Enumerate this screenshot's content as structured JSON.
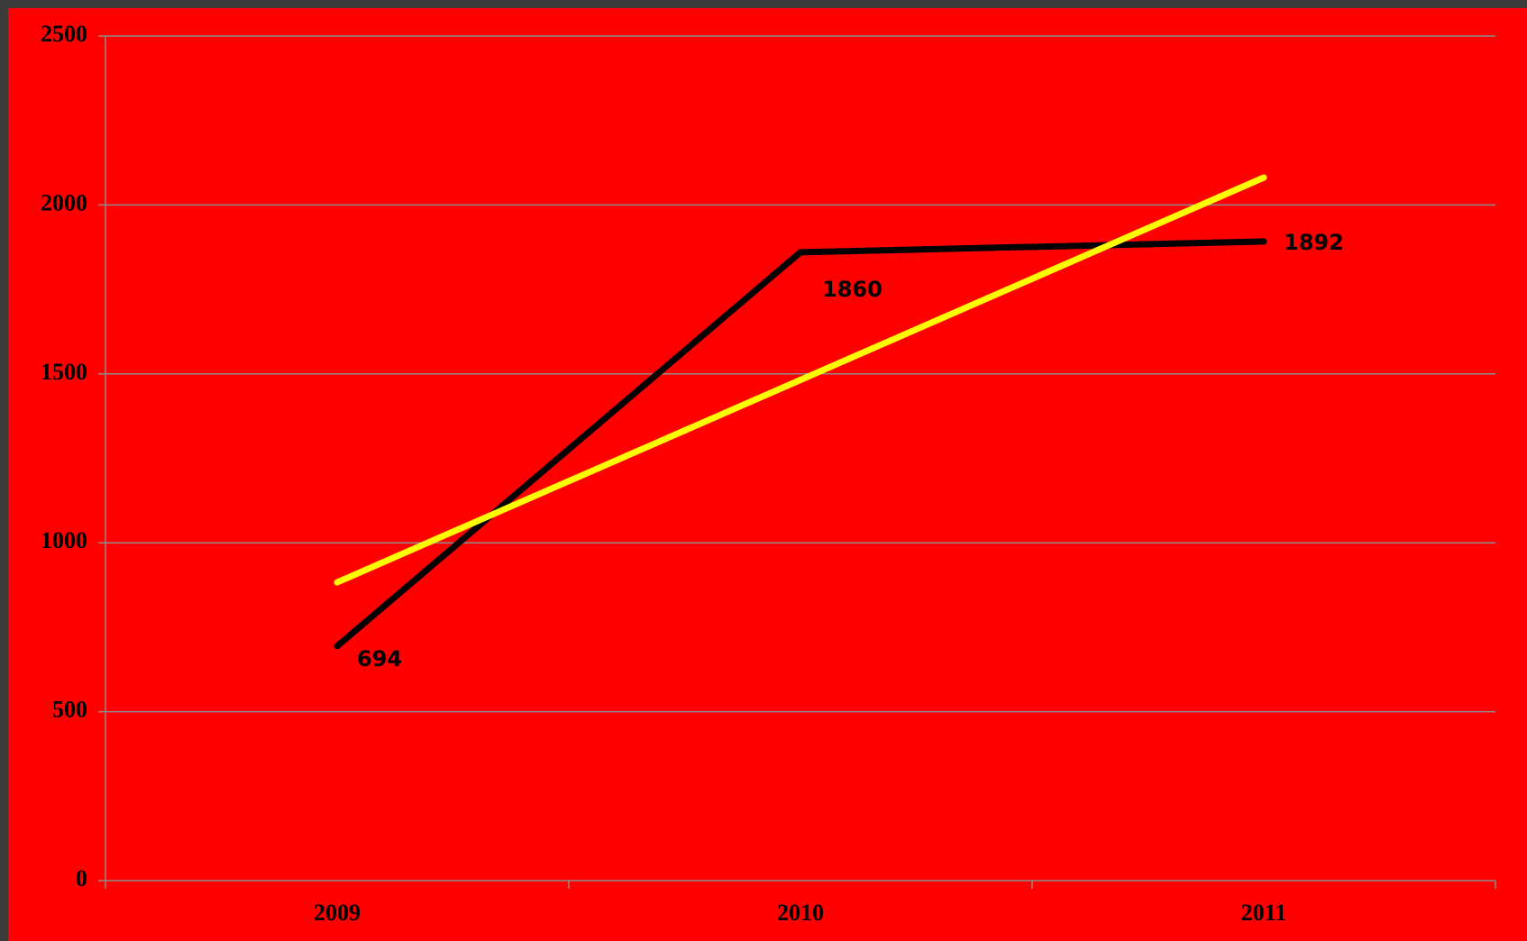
{
  "chart_data": {
    "type": "line",
    "categories": [
      "2009",
      "2010",
      "2011"
    ],
    "series": [
      {
        "color": "#000000",
        "values": [
          694,
          1860,
          1892
        ],
        "data_labels": true
      },
      {
        "color": "#ffff00",
        "values": [
          883,
          1482,
          2081
        ]
      }
    ],
    "ylim": [
      0,
      2500
    ],
    "yticks": [
      0,
      500,
      1000,
      1500,
      2000,
      2500
    ],
    "grid": true
  }
}
